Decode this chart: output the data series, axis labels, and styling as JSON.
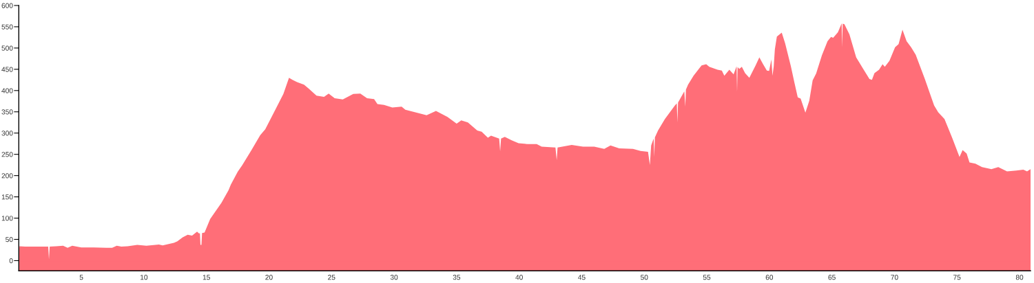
{
  "chart_data": {
    "type": "area",
    "color": "#ff6e78",
    "x": [
      0,
      0.05,
      0.5,
      1.2,
      2.0,
      2.35,
      2.41,
      2.47,
      3.0,
      3.54,
      3.9,
      4.27,
      5.0,
      6.0,
      7.0,
      7.46,
      7.83,
      8.2,
      8.7,
      9.47,
      10.2,
      11.2,
      11.5,
      12.4,
      12.66,
      13.1,
      13.5,
      13.85,
      14.25,
      14.4,
      14.48,
      14.52,
      14.6,
      14.65,
      14.85,
      15.3,
      16.2,
      16.77,
      16.95,
      17.5,
      17.87,
      18.6,
      19.3,
      19.7,
      20.4,
      21.15,
      21.6,
      21.88,
      22.24,
      22.8,
      23.16,
      23.8,
      24.4,
      24.77,
      25.25,
      25.9,
      26.74,
      27.3,
      27.84,
      28.4,
      28.67,
      29.2,
      29.86,
      30.6,
      30.9,
      31.7,
      32.6,
      33.35,
      34.27,
      35.0,
      35.37,
      35.9,
      36.65,
      37.0,
      37.5,
      37.75,
      38.4,
      38.48,
      38.55,
      38.85,
      39.4,
      39.95,
      40.7,
      41.4,
      41.8,
      42.9,
      43.0,
      43.07,
      44.2,
      45.1,
      46.0,
      46.8,
      47.3,
      48.0,
      49.1,
      49.7,
      50.3,
      50.45,
      50.55,
      50.75,
      50.8,
      50.85,
      51.1,
      51.65,
      52.45,
      52.6,
      52.65,
      52.7,
      53.2,
      53.28,
      53.33,
      53.5,
      53.94,
      54.58,
      54.95,
      55.2,
      55.86,
      56.2,
      56.4,
      56.8,
      57.14,
      57.38,
      57.42,
      57.46,
      57.6,
      57.8,
      58.06,
      58.4,
      58.9,
      59.2,
      59.5,
      59.8,
      59.98,
      60.16,
      60.25,
      60.35,
      60.44,
      60.6,
      60.99,
      61.26,
      61.72,
      62.0,
      62.27,
      62.5,
      62.88,
      63.19,
      63.46,
      63.74,
      64.2,
      64.65,
      64.93,
      65.1,
      65.48,
      65.78,
      65.82,
      65.86,
      66.0,
      66.4,
      66.94,
      67.5,
      68.0,
      68.2,
      68.4,
      68.77,
      69.05,
      69.23,
      69.6,
      70.05,
      70.33,
      70.64,
      70.97,
      71.33,
      71.7,
      72.43,
      73.17,
      73.5,
      74.0,
      74.6,
      75.2,
      75.45,
      75.77,
      76.0,
      76.47,
      77.0,
      77.75,
      78.3,
      79.0,
      79.76,
      80.3,
      80.6,
      80.88
    ],
    "values": [
      12,
      34,
      33,
      33,
      33,
      33,
      3,
      33,
      34,
      35,
      30,
      35,
      31,
      31,
      30,
      30,
      35,
      33,
      34,
      37,
      35,
      38,
      36,
      42,
      45,
      55,
      61,
      59,
      68,
      64,
      64,
      37,
      37,
      65,
      66,
      98,
      136,
      166,
      179,
      209,
      225,
      260,
      295,
      309,
      349,
      392,
      430,
      425,
      420,
      414,
      405,
      388,
      385,
      393,
      382,
      379,
      392,
      393,
      382,
      380,
      368,
      366,
      360,
      362,
      355,
      349,
      342,
      352,
      338,
      322,
      330,
      325,
      306,
      303,
      289,
      294,
      287,
      257,
      287,
      291,
      283,
      276,
      274,
      274,
      268,
      266,
      236,
      266,
      272,
      268,
      268,
      263,
      271,
      264,
      263,
      258,
      256,
      225,
      271,
      287,
      244,
      290,
      306,
      333,
      365,
      370,
      325,
      372,
      398,
      362,
      402,
      414,
      435,
      459,
      462,
      456,
      449,
      447,
      435,
      449,
      438,
      457,
      397,
      455,
      451,
      456,
      441,
      430,
      459,
      478,
      462,
      447,
      446,
      473,
      435,
      457,
      497,
      527,
      536,
      511,
      457,
      419,
      384,
      381,
      348,
      376,
      424,
      440,
      483,
      516,
      526,
      524,
      537,
      558,
      502,
      557,
      556,
      532,
      478,
      451,
      427,
      425,
      441,
      449,
      462,
      456,
      470,
      502,
      509,
      543,
      516,
      502,
      484,
      427,
      365,
      349,
      333,
      290,
      244,
      260,
      252,
      231,
      228,
      220,
      215,
      220,
      210,
      212,
      214,
      210,
      215
    ],
    "bands": [
      {
        "axis": "y",
        "from": -24,
        "to": 0,
        "color": "#ff6e78"
      }
    ],
    "xlim": [
      0,
      80.88
    ],
    "ylim": [
      -24,
      600
    ],
    "xticks": [
      5,
      10,
      15,
      20,
      25,
      30,
      35,
      40,
      45,
      50,
      55,
      60,
      65,
      70,
      75,
      80
    ],
    "yticks": [
      0,
      50,
      100,
      150,
      200,
      250,
      300,
      350,
      400,
      450,
      500,
      550,
      600
    ]
  }
}
